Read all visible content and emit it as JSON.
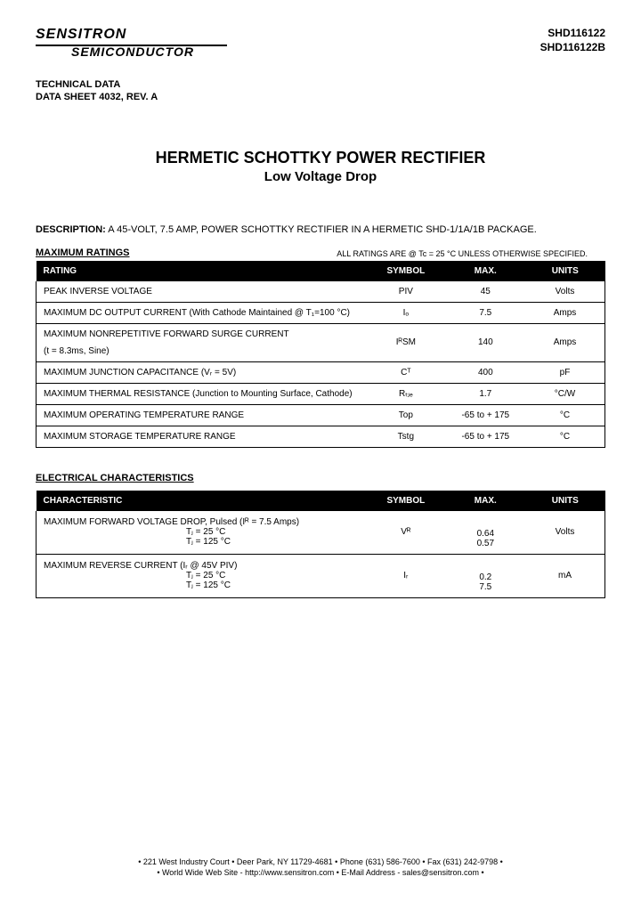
{
  "company": {
    "top": "SENSITRON",
    "sub": "SEMICONDUCTOR"
  },
  "partnums": [
    "SHD116122",
    "SHD116122B"
  ],
  "tech": {
    "l1": "TECHNICAL DATA",
    "l2": "DATA SHEET 4032, REV. A"
  },
  "title": {
    "main": "HERMETIC SCHOTTKY POWER RECTIFIER",
    "sub": "Low Voltage Drop"
  },
  "desc": {
    "label": "DESCRIPTION:",
    "text": " A 45-VOLT, 7.5 AMP, POWER SCHOTTKY RECTIFIER IN A HERMETIC SHD-1/1A/1B PACKAGE."
  },
  "ratings": {
    "label": "MAXIMUM RATINGS",
    "note": "ALL RATINGS ARE @ Tc = 25 °C UNLESS OTHERWISE SPECIFIED.",
    "headers": [
      "RATING",
      "SYMBOL",
      "MAX.",
      "UNITS"
    ],
    "rows": [
      {
        "name": "PEAK INVERSE VOLTAGE",
        "sub": "",
        "symbol": "PIV",
        "max": "45",
        "units": "Volts"
      },
      {
        "name": "MAXIMUM DC OUTPUT CURRENT (With Cathode Maintained @ T₁=100 °C)",
        "sub": "",
        "symbol": "Iₒ",
        "max": "7.5",
        "units": "Amps"
      },
      {
        "name": "MAXIMUM NONREPETITIVE FORWARD SURGE CURRENT",
        "sub": "(t = 8.3ms, Sine)",
        "symbol": "IᴿSM",
        "max": "140",
        "units": "Amps"
      },
      {
        "name": "MAXIMUM JUNCTION CAPACITANCE (Vᵣ = 5V)",
        "sub": "",
        "symbol": "Cᵀ",
        "max": "400",
        "units": "pF"
      },
      {
        "name": "MAXIMUM THERMAL RESISTANCE (Junction to Mounting Surface, Cathode)",
        "sub": "",
        "symbol": "Rₜⱼₑ",
        "max": "1.7",
        "units": "°C/W"
      },
      {
        "name": "MAXIMUM OPERATING TEMPERATURE RANGE",
        "sub": "",
        "symbol": "Top",
        "max": "-65 to + 175",
        "units": "°C"
      },
      {
        "name": "MAXIMUM STORAGE TEMPERATURE RANGE",
        "sub": "",
        "symbol": "Tstg",
        "max": "-65 to + 175",
        "units": "°C"
      }
    ]
  },
  "elec": {
    "label": "ELECTRICAL CHARACTERISTICS",
    "headers": [
      "CHARACTERISTIC",
      "SYMBOL",
      "MAX.",
      "UNITS"
    ],
    "rows": [
      {
        "name": "MAXIMUM FORWARD VOLTAGE DROP, Pulsed   (Iᴿ = 7.5 Amps)",
        "cond1": "Tⱼ = 25 °C",
        "cond2": "Tⱼ = 125 °C",
        "symbol": "Vᴿ",
        "max1": "0.64",
        "max2": "0.57",
        "units": "Volts"
      },
      {
        "name": "MAXIMUM REVERSE CURRENT   (Iᵣ @ 45V PIV)",
        "cond1": "Tⱼ = 25 °C",
        "cond2": "Tⱼ = 125 °C",
        "symbol": "Iᵣ",
        "max1": "0.2",
        "max2": "7.5",
        "units": "mA"
      }
    ]
  },
  "footer": {
    "l1": "• 221 West Industry Court • Deer Park, NY 11729-4681 • Phone (631) 586-7600 • Fax (631) 242-9798 •",
    "l2": "• World Wide Web Site - http://www.sensitron.com • E-Mail Address - sales@sensitron.com •"
  },
  "colors": {
    "bg": "#ffffff",
    "text": "#000000",
    "header_bg": "#000000",
    "header_text": "#ffffff"
  },
  "typography": {
    "body_size": 11,
    "title_size": 18,
    "table_size": 10
  }
}
